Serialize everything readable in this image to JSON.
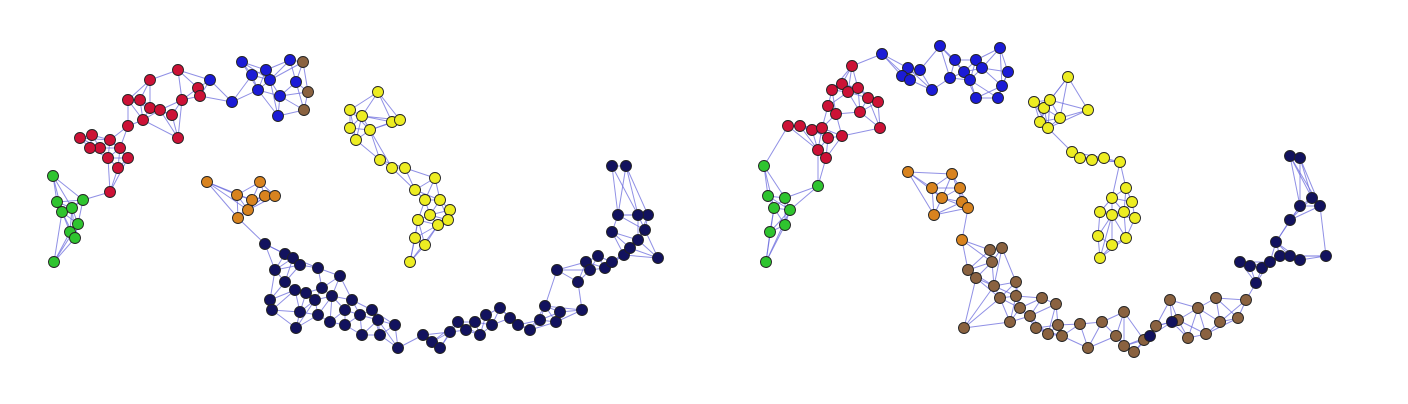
{
  "colors": {
    "edge": "#6b6bdc",
    "node_outline": "#222222",
    "background": "#ffffff"
  },
  "graphs": [
    {
      "name": "left",
      "clusters": [
        {
          "id": "green",
          "color": "#2fc42f"
        },
        {
          "id": "red",
          "color": "#cc1236"
        },
        {
          "id": "blue",
          "color": "#1b1bd6"
        },
        {
          "id": "brown",
          "color": "#8a6240"
        },
        {
          "id": "yellow",
          "color": "#eded22"
        },
        {
          "id": "orange",
          "color": "#d8831f"
        },
        {
          "id": "navy",
          "color": "#12125e"
        }
      ]
    },
    {
      "name": "right",
      "clusters": [
        {
          "id": "green",
          "color": "#2fc42f"
        },
        {
          "id": "red",
          "color": "#cc1236"
        },
        {
          "id": "blue",
          "color": "#1b1bd6"
        },
        {
          "id": "yellow",
          "color": "#eded22"
        },
        {
          "id": "orange",
          "color": "#d8831f"
        },
        {
          "id": "brown",
          "color": "#8a6240"
        },
        {
          "id": "navy",
          "color": "#12125e"
        }
      ]
    }
  ]
}
